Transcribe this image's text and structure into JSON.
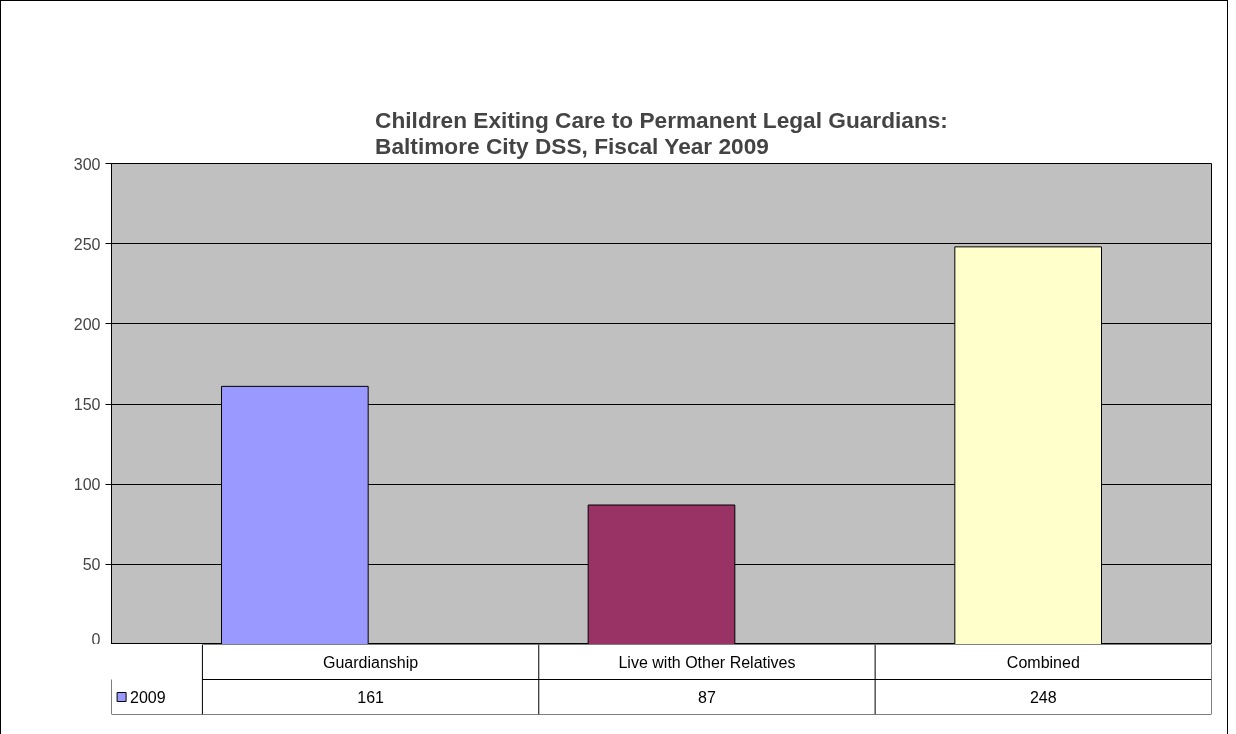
{
  "chart_data": {
    "type": "bar",
    "title": "Children Exiting Care to Permanent Legal Guardians:\nBaltimore City DSS, Fiscal Year 2009",
    "categories": [
      "Guardianship",
      "Live with Other Relatives",
      "Combined"
    ],
    "series": [
      {
        "name": "2009",
        "color": "#9999ff",
        "colors": [
          "#9999ff",
          "#993366",
          "#ffffcc"
        ],
        "values": [
          161,
          87,
          248
        ]
      }
    ],
    "ylim": [
      0,
      300
    ],
    "yticks": [
      0,
      50,
      100,
      150,
      200,
      250,
      300
    ],
    "grid": "y",
    "legend": "bottom",
    "data_labels": true
  }
}
